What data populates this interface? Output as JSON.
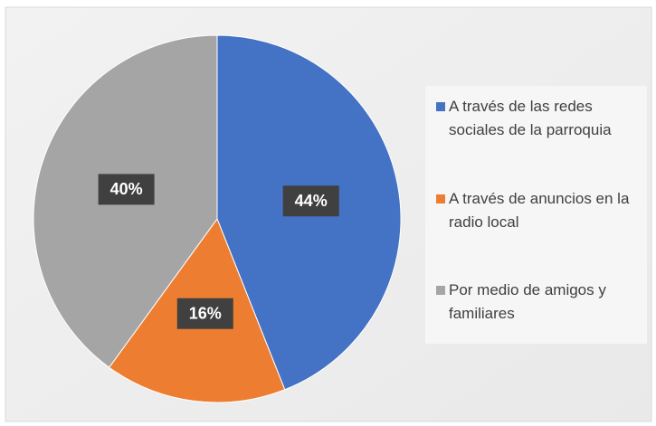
{
  "chart_data": {
    "type": "pie",
    "categories": [
      "A través de las redes sociales de la parroquia",
      "A través de anuncios en la radio local",
      "Por medio de amigos y familiares"
    ],
    "values": [
      44,
      16,
      40
    ],
    "value_labels": [
      "44%",
      "16%",
      "40%"
    ],
    "colors": [
      "#4472c4",
      "#ed7d31",
      "#a5a5a5"
    ],
    "legend": "right"
  }
}
